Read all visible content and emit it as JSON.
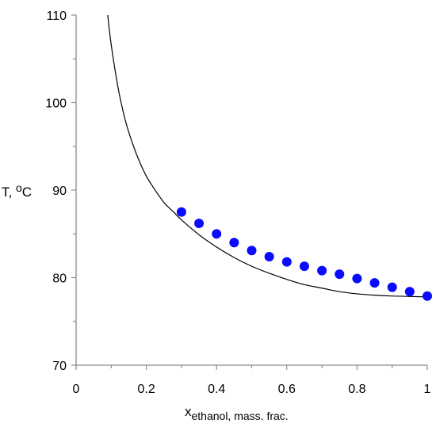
{
  "chart_data": {
    "type": "scatter",
    "xlabel": {
      "main": "x",
      "subscript": "ethanol,",
      "suffix": " mass. frac."
    },
    "ylabel": {
      "main": "T, ",
      "superscript": "o",
      "suffix": "C"
    },
    "xlim": [
      0,
      1
    ],
    "ylim": [
      70,
      110
    ],
    "x_ticks": [
      0,
      0.2,
      0.4,
      0.6,
      0.8,
      1
    ],
    "x_tick_labels": [
      "0",
      "0.2",
      "0.4",
      "0.6",
      "0.8",
      "1"
    ],
    "y_ticks": [
      70,
      80,
      90,
      100,
      110
    ],
    "y_tick_labels": [
      "70",
      "80",
      "90",
      "100",
      "110"
    ],
    "grid": false,
    "legend": "none",
    "series": [
      {
        "kind": "points",
        "color": "#0a0aff",
        "x": [
          0.3,
          0.35,
          0.4,
          0.45,
          0.5,
          0.55,
          0.6,
          0.65,
          0.7,
          0.75,
          0.8,
          0.85,
          0.9,
          0.95,
          1.0
        ],
        "y": [
          87.5,
          86.2,
          85.0,
          84.0,
          83.1,
          82.4,
          81.8,
          81.3,
          80.8,
          80.4,
          79.9,
          79.4,
          78.9,
          78.4,
          77.9
        ]
      },
      {
        "kind": "line",
        "color": "#000000",
        "x": [
          0.09,
          0.1,
          0.12,
          0.14,
          0.16,
          0.18,
          0.2,
          0.22,
          0.25,
          0.28,
          0.3,
          0.35,
          0.4,
          0.45,
          0.5,
          0.55,
          0.6,
          0.65,
          0.7,
          0.75,
          0.8,
          0.85,
          0.9,
          0.95,
          1.0
        ],
        "y": [
          110.0,
          106.6,
          101.6,
          98.0,
          95.4,
          93.3,
          91.6,
          90.3,
          88.6,
          87.4,
          86.6,
          84.9,
          83.5,
          82.3,
          81.3,
          80.5,
          79.8,
          79.2,
          78.8,
          78.4,
          78.15,
          78.0,
          77.9,
          77.85,
          77.8
        ]
      }
    ]
  }
}
